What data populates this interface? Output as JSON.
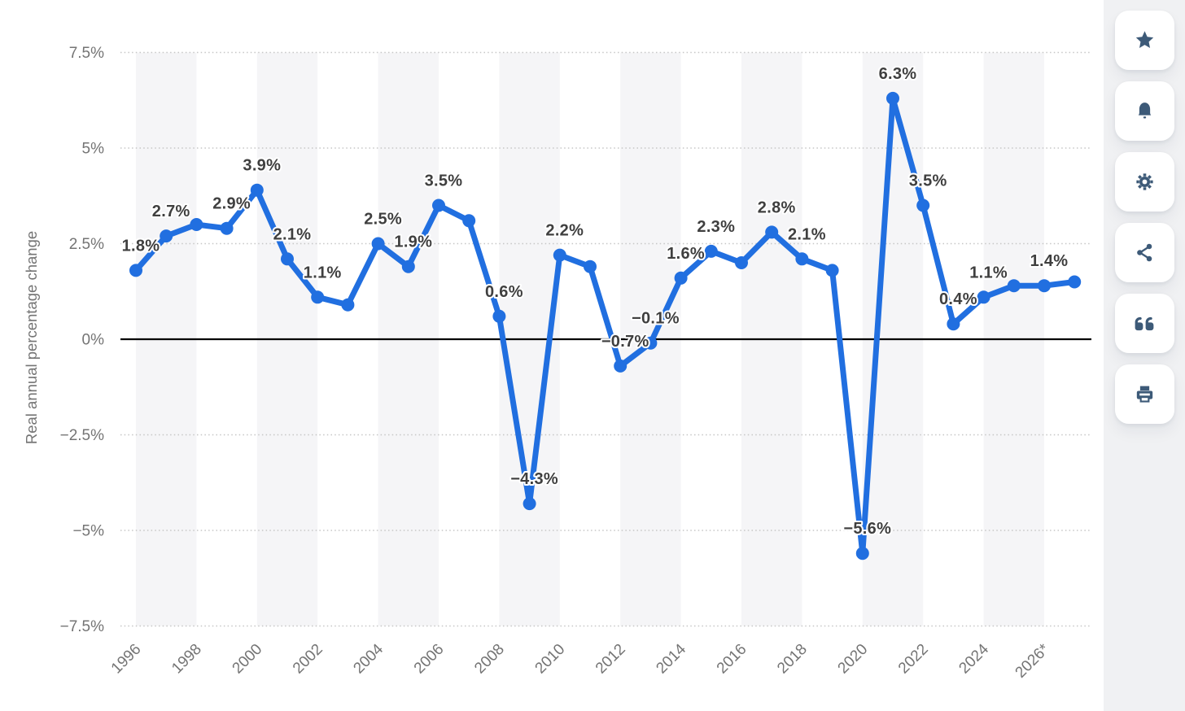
{
  "page": {
    "background": "#ffffff",
    "rail_background": "#f0f1f3",
    "icon_color": "#3d5a78"
  },
  "chart_data": {
    "type": "line",
    "title": "",
    "xlabel": "",
    "ylabel": "Real annual percentage change",
    "x": [
      1996,
      1997,
      1998,
      1999,
      2000,
      2001,
      2002,
      2003,
      2004,
      2005,
      2006,
      2007,
      2008,
      2009,
      2010,
      2011,
      2012,
      2013,
      2014,
      2015,
      2016,
      2017,
      2018,
      2019,
      2020,
      2021,
      2022,
      2023,
      2024,
      2025,
      2026,
      2027
    ],
    "values": [
      1.8,
      2.7,
      3.0,
      2.9,
      3.9,
      2.1,
      1.1,
      0.9,
      2.5,
      1.9,
      3.5,
      3.1,
      0.6,
      -4.3,
      2.2,
      1.9,
      -0.7,
      -0.1,
      1.6,
      2.3,
      2.0,
      2.8,
      2.1,
      1.8,
      -5.6,
      6.3,
      3.5,
      0.4,
      1.1,
      1.4,
      1.4,
      1.5
    ],
    "point_labels": [
      "1.8%",
      "2.7%",
      null,
      "2.9%",
      "3.9%",
      "2.1%",
      "1.1%",
      null,
      "2.5%",
      "1.9%",
      "3.5%",
      null,
      "0.6%",
      "−4.3%",
      "2.2%",
      null,
      "−0.7%",
      "−0.1%",
      "1.6%",
      "2.3%",
      null,
      "2.8%",
      "2.1%",
      null,
      "−5.6%",
      "6.3%",
      "3.5%",
      "0.4%",
      "1.1%",
      null,
      "1.4%",
      null
    ],
    "x_tick_labels": [
      "1996",
      "1998",
      "2000",
      "2002",
      "2004",
      "2006",
      "2008",
      "2010",
      "2012",
      "2014",
      "2016",
      "2018",
      "2020",
      "2022",
      "2024",
      "2026*"
    ],
    "x_tick_years": [
      1996,
      1998,
      2000,
      2002,
      2004,
      2006,
      2008,
      2010,
      2012,
      2014,
      2016,
      2018,
      2020,
      2022,
      2024,
      2026
    ],
    "y_tick_labels": [
      "7.5%",
      "5%",
      "2.5%",
      "0%",
      "−2.5%",
      "−5%",
      "−7.5%"
    ],
    "y_tick_values": [
      7.5,
      5,
      2.5,
      0,
      -2.5,
      -5,
      -7.5
    ],
    "ylim": [
      -7.5,
      7.5
    ],
    "xlim_years": [
      1996,
      2027
    ],
    "grid": "dotted horizontal gridlines, solid black zero line",
    "legend": "none",
    "line_color": "#216fe0",
    "marker_color": "#216fe0",
    "label_color": "#3f3f3f",
    "axis_text_color": "#747474",
    "band_color": "#f5f5f7",
    "band_start_years": [
      1996,
      2000,
      2004,
      2008,
      2012,
      2016,
      2020,
      2024
    ],
    "band_span_years": 2
  },
  "toolbar": {
    "buttons": [
      {
        "id": "favorite",
        "icon": "star-icon"
      },
      {
        "id": "notifications",
        "icon": "bell-icon"
      },
      {
        "id": "settings",
        "icon": "gear-icon"
      },
      {
        "id": "share",
        "icon": "share-icon"
      },
      {
        "id": "cite",
        "icon": "quote-icon"
      },
      {
        "id": "print",
        "icon": "printer-icon"
      }
    ]
  }
}
